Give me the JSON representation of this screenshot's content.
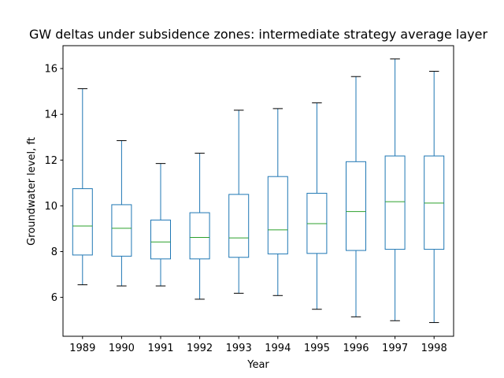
{
  "chart_data": {
    "type": "box",
    "title": "GW deltas under subsidence zones: intermediate strategy average layer",
    "xlabel": "Year",
    "ylabel": "Groundwater level, ft",
    "categories": [
      "1989",
      "1990",
      "1991",
      "1992",
      "1993",
      "1994",
      "1995",
      "1996",
      "1997",
      "1998"
    ],
    "boxes": [
      {
        "whislo": 6.55,
        "q1": 7.85,
        "med": 9.12,
        "q3": 10.75,
        "whishi": 15.12
      },
      {
        "whislo": 6.5,
        "q1": 7.8,
        "med": 9.02,
        "q3": 10.05,
        "whishi": 12.85
      },
      {
        "whislo": 6.5,
        "q1": 7.68,
        "med": 8.42,
        "q3": 9.38,
        "whishi": 11.85
      },
      {
        "whislo": 5.92,
        "q1": 7.68,
        "med": 8.62,
        "q3": 9.7,
        "whishi": 12.3
      },
      {
        "whislo": 6.18,
        "q1": 7.75,
        "med": 8.6,
        "q3": 10.5,
        "whishi": 14.18
      },
      {
        "whislo": 6.08,
        "q1": 7.9,
        "med": 8.95,
        "q3": 11.28,
        "whishi": 14.25
      },
      {
        "whislo": 5.48,
        "q1": 7.92,
        "med": 9.22,
        "q3": 10.55,
        "whishi": 14.5
      },
      {
        "whislo": 5.15,
        "q1": 8.05,
        "med": 9.75,
        "q3": 11.93,
        "whishi": 15.65
      },
      {
        "whislo": 4.98,
        "q1": 8.1,
        "med": 10.18,
        "q3": 12.18,
        "whishi": 16.42
      },
      {
        "whislo": 4.9,
        "q1": 8.1,
        "med": 10.12,
        "q3": 12.18,
        "whishi": 15.88
      }
    ],
    "ylim": [
      4.3,
      17.0
    ],
    "yticks": [
      6,
      8,
      10,
      12,
      14,
      16
    ],
    "grid": false,
    "colors": {
      "box": "#1f77b4",
      "median": "#2ca02c",
      "whisker": "#1f77b4",
      "cap": "#000000",
      "axis": "#000000"
    }
  }
}
